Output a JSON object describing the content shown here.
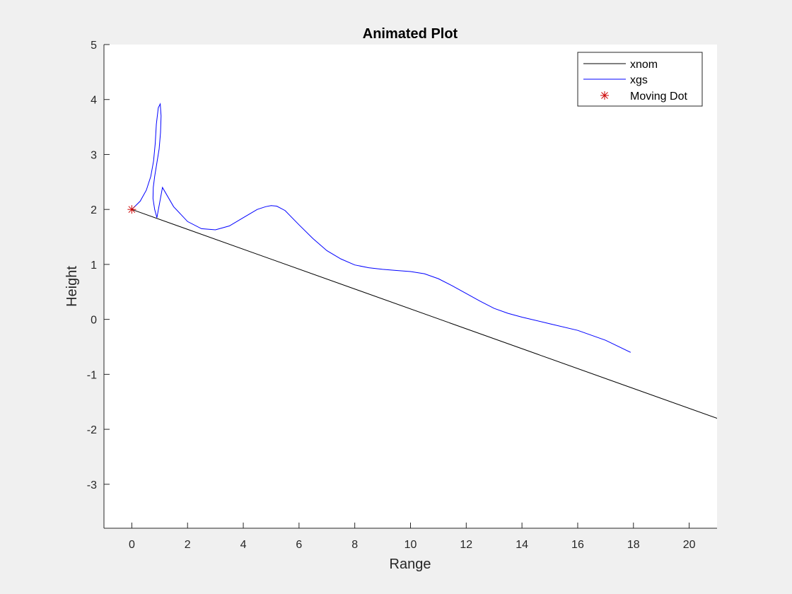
{
  "chart_data": {
    "type": "line",
    "title": "Animated Plot",
    "xlabel": "Range",
    "ylabel": "Height",
    "xlim": [
      -1,
      21
    ],
    "ylim": [
      -3.8,
      5
    ],
    "xticks": [
      0,
      2,
      4,
      6,
      8,
      10,
      12,
      14,
      16,
      18,
      20
    ],
    "yticks": [
      -3,
      -2,
      -1,
      0,
      1,
      2,
      3,
      4,
      5
    ],
    "grid": false,
    "legend_placement": "top-right",
    "series": [
      {
        "name": "xnom",
        "color": "#000000",
        "style": "line",
        "x": [
          0,
          21
        ],
        "y": [
          2,
          -1.8
        ]
      },
      {
        "name": "xgs",
        "color": "#0000ff",
        "style": "line",
        "x": [
          0,
          0.3,
          0.52,
          0.68,
          0.78,
          0.84,
          0.88,
          0.95,
          1.02,
          1.05,
          1.03,
          0.98,
          0.9,
          0.82,
          0.77,
          0.76,
          0.82,
          0.9,
          1.1,
          1.5,
          2.0,
          2.5,
          3.0,
          3.5,
          4.0,
          4.5,
          4.8,
          5.0,
          5.2,
          5.5,
          6.0,
          6.5,
          7.0,
          7.5,
          8.0,
          8.5,
          9.0,
          9.5,
          10.0,
          10.5,
          11.0,
          11.5,
          12.0,
          12.5,
          13.0,
          13.5,
          14.0,
          15.0,
          16.0,
          17.0,
          17.9
        ],
        "y": [
          2.0,
          2.15,
          2.35,
          2.6,
          2.88,
          3.2,
          3.55,
          3.85,
          3.92,
          3.7,
          3.4,
          3.1,
          2.85,
          2.6,
          2.4,
          2.2,
          2.0,
          1.85,
          2.4,
          2.05,
          1.78,
          1.65,
          1.63,
          1.7,
          1.85,
          2.0,
          2.05,
          2.07,
          2.06,
          1.98,
          1.72,
          1.47,
          1.25,
          1.1,
          0.99,
          0.94,
          0.91,
          0.89,
          0.87,
          0.83,
          0.74,
          0.61,
          0.47,
          0.33,
          0.2,
          0.11,
          0.04,
          -0.08,
          -0.2,
          -0.38,
          -0.6
        ]
      },
      {
        "name": "Moving Dot",
        "color": "#cc0000",
        "style": "marker",
        "marker": "asterisk",
        "x": [
          0
        ],
        "y": [
          2
        ]
      }
    ]
  }
}
